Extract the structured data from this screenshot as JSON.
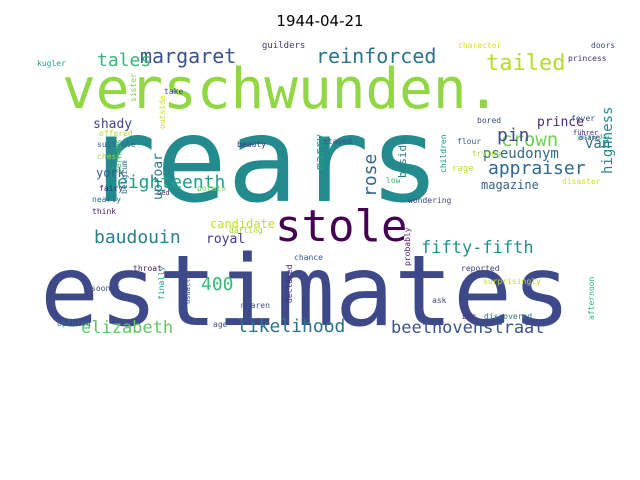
{
  "chart_data": {
    "type": "wordcloud",
    "title": "1944-04-21",
    "words": [
      {
        "text": "rears",
        "color": "#238a8d"
      },
      {
        "text": "estimates",
        "color": "#3e4989"
      },
      {
        "text": "verschwunden.",
        "color": "#90d743"
      },
      {
        "text": "stole",
        "color": "#440154"
      },
      {
        "text": "tailed",
        "color": "#b5de2b"
      },
      {
        "text": "reinforced",
        "color": "#2c728e"
      },
      {
        "text": "margaret",
        "color": "#3b528b"
      },
      {
        "text": "tales",
        "color": "#35b779"
      },
      {
        "text": "fifty-fifth",
        "color": "#21918c"
      },
      {
        "text": "appraiser",
        "color": "#31688e"
      },
      {
        "text": "eighteenth",
        "color": "#1f9e89"
      },
      {
        "text": "crown",
        "color": "#6ece58"
      },
      {
        "text": "pin",
        "color": "#3e4989"
      },
      {
        "text": "rose",
        "color": "#31688e"
      },
      {
        "text": "baudouin",
        "color": "#26828e"
      },
      {
        "text": "elizabeth",
        "color": "#5ec962"
      },
      {
        "text": "likelihood",
        "color": "#2c728e"
      },
      {
        "text": "beethovenstraat",
        "color": "#3b528b"
      },
      {
        "text": "400",
        "color": "#35b779"
      },
      {
        "text": "pseudonym",
        "color": "#31688e"
      },
      {
        "text": "prince",
        "color": "#482878"
      },
      {
        "text": "magazine",
        "color": "#355f8d"
      },
      {
        "text": "royal",
        "color": "#443983"
      },
      {
        "text": "candidate",
        "color": "#c2df23"
      },
      {
        "text": "uproar",
        "color": "#2a788e"
      },
      {
        "text": "marry",
        "color": "#20a486"
      },
      {
        "text": "beside",
        "color": "#287c8e"
      },
      {
        "text": "highness",
        "color": "#25858e"
      },
      {
        "text": "van",
        "color": "#2d708e"
      },
      {
        "text": "shady",
        "color": "#414487"
      },
      {
        "text": "york",
        "color": "#38598c"
      },
      {
        "text": "guilders",
        "color": "#46337e"
      },
      {
        "text": "character",
        "color": "#dde318"
      },
      {
        "text": "doors",
        "color": "#3f4788"
      },
      {
        "text": "princess",
        "color": "#472d7b"
      },
      {
        "text": "kugler",
        "color": "#1fa088"
      },
      {
        "text": "fever",
        "color": "#39558c"
      },
      {
        "text": "blame",
        "color": "#481d6f"
      },
      {
        "text": "bored",
        "color": "#3e4a89"
      },
      {
        "text": "führer",
        "color": "#482475"
      },
      {
        "text": "flour",
        "color": "#3a548c"
      },
      {
        "text": "trying",
        "color": "#a8db34"
      },
      {
        "text": "offered",
        "color": "#addc30"
      },
      {
        "text": "suitable",
        "color": "#31688e"
      },
      {
        "text": "chest",
        "color": "#9bd93c"
      },
      {
        "text": "perhaps",
        "color": "#3dbc74"
      },
      {
        "text": "belgium",
        "color": "#2d708e"
      },
      {
        "text": "beauty",
        "color": "#443983"
      },
      {
        "text": "bed",
        "color": "#472c7a"
      },
      {
        "text": "potato",
        "color": "#75d054"
      },
      {
        "text": "stayed",
        "color": "#3b528b"
      },
      {
        "text": "rage",
        "color": "#b5de2b"
      },
      {
        "text": "children",
        "color": "#1f968b"
      },
      {
        "text": "disaster",
        "color": "#d2e21b"
      },
      {
        "text": "fairy",
        "color": "#481f70"
      },
      {
        "text": "nearly",
        "color": "#2e6f8e"
      },
      {
        "text": "think",
        "color": "#481a6c"
      },
      {
        "text": "darling",
        "color": "#a2da37"
      },
      {
        "text": "chance",
        "color": "#3b528b"
      },
      {
        "text": "wondering",
        "color": "#3f4788"
      },
      {
        "text": "low",
        "color": "#35b779"
      },
      {
        "text": "reported",
        "color": "#443a83"
      },
      {
        "text": "surprisingly",
        "color": "#bddf26"
      },
      {
        "text": "throat",
        "color": "#481668"
      },
      {
        "text": "sooner",
        "color": "#404688"
      },
      {
        "text": "finally",
        "color": "#20a386"
      },
      {
        "text": "usually",
        "color": "#39568c"
      },
      {
        "text": "declared",
        "color": "#482878"
      },
      {
        "text": "maaren",
        "color": "#3d4d8a"
      },
      {
        "text": "probably",
        "color": "#481b6d"
      },
      {
        "text": "sore",
        "color": "#3b518b"
      },
      {
        "text": "bbc",
        "color": "#472f7d"
      },
      {
        "text": "ask",
        "color": "#3e4989"
      },
      {
        "text": "discovered",
        "color": "#2a788e"
      },
      {
        "text": "opinion",
        "color": "#2d718e"
      },
      {
        "text": "age",
        "color": "#3b528b"
      },
      {
        "text": "sister",
        "color": "#7fd34e"
      },
      {
        "text": "take",
        "color": "#414487"
      },
      {
        "text": "outside",
        "color": "#c8e020"
      },
      {
        "text": "afternoon",
        "color": "#2fb47c"
      },
      {
        "text": "yesterday",
        "color": "#22a785"
      }
    ]
  }
}
